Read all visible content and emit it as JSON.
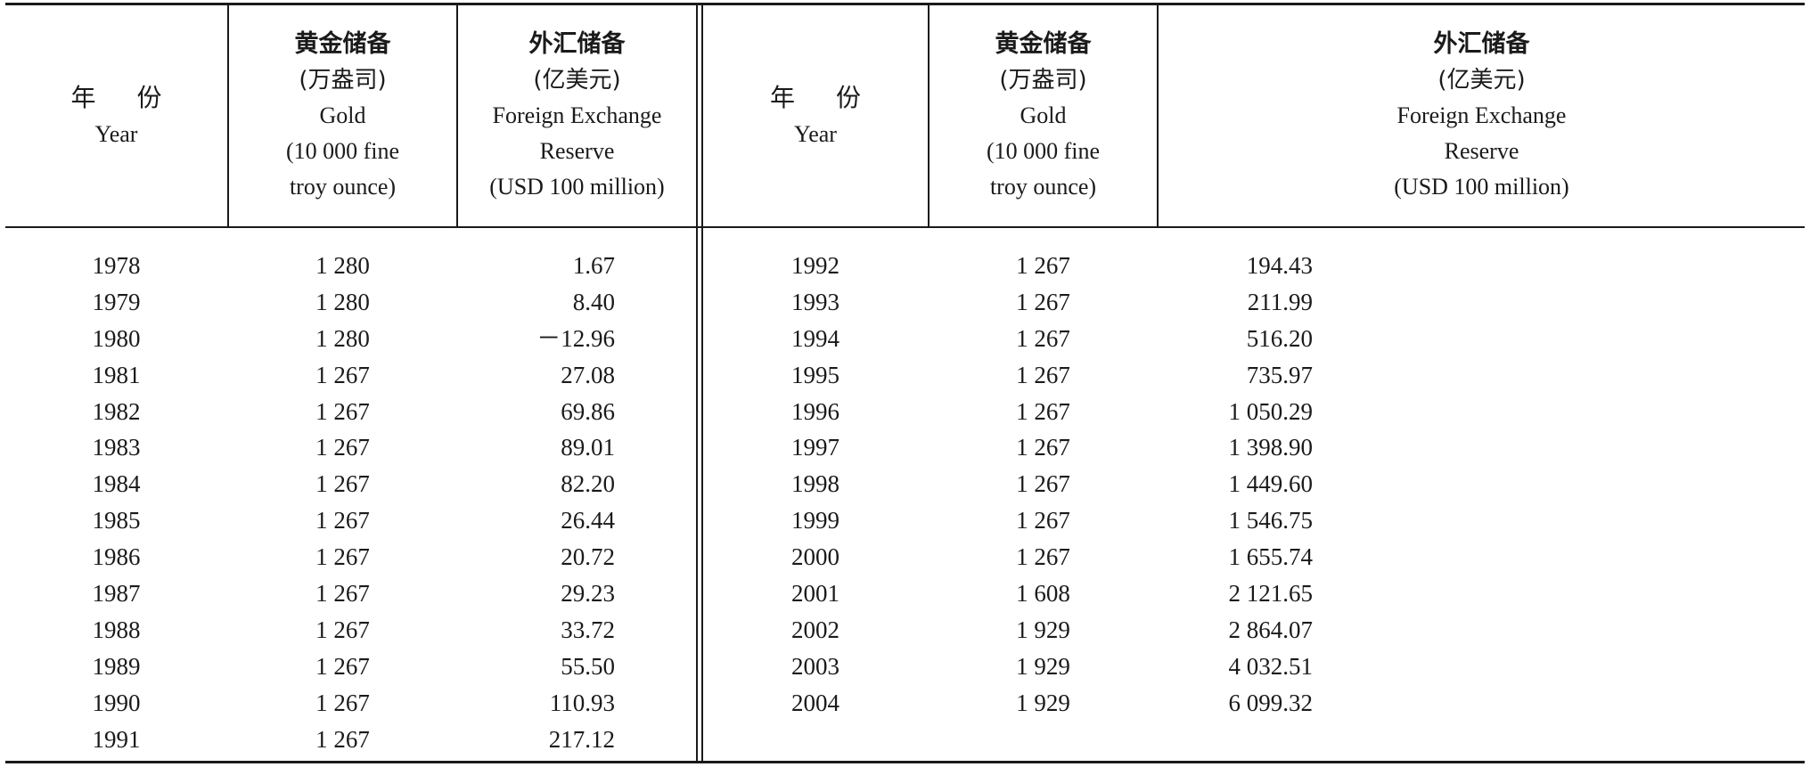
{
  "headers": {
    "year_cn_left": "年",
    "year_cn_right": "份",
    "year_en": "Year",
    "gold": [
      "黄金储备",
      "(万盎司)",
      "Gold",
      "(10 000 fine",
      "troy ounce)"
    ],
    "fx": [
      "外汇储备",
      "(亿美元)",
      "Foreign Exchange",
      "Reserve",
      "(USD 100 million)"
    ]
  },
  "left_rows": [
    {
      "year": "1978",
      "gold": "1 280",
      "fx": "1.67"
    },
    {
      "year": "1979",
      "gold": "1 280",
      "fx": "8.40"
    },
    {
      "year": "1980",
      "gold": "1 280",
      "fx": "－12.96"
    },
    {
      "year": "1981",
      "gold": "1 267",
      "fx": "27.08"
    },
    {
      "year": "1982",
      "gold": "1 267",
      "fx": "69.86"
    },
    {
      "year": "1983",
      "gold": "1 267",
      "fx": "89.01"
    },
    {
      "year": "1984",
      "gold": "1 267",
      "fx": "82.20"
    },
    {
      "year": "1985",
      "gold": "1 267",
      "fx": "26.44"
    },
    {
      "year": "1986",
      "gold": "1 267",
      "fx": "20.72"
    },
    {
      "year": "1987",
      "gold": "1 267",
      "fx": "29.23"
    },
    {
      "year": "1988",
      "gold": "1 267",
      "fx": "33.72"
    },
    {
      "year": "1989",
      "gold": "1 267",
      "fx": "55.50"
    },
    {
      "year": "1990",
      "gold": "1 267",
      "fx": "110.93"
    },
    {
      "year": "1991",
      "gold": "1 267",
      "fx": "217.12"
    }
  ],
  "right_rows": [
    {
      "year": "1992",
      "gold": "1 267",
      "fx": "194.43"
    },
    {
      "year": "1993",
      "gold": "1 267",
      "fx": "211.99"
    },
    {
      "year": "1994",
      "gold": "1 267",
      "fx": "516.20"
    },
    {
      "year": "1995",
      "gold": "1 267",
      "fx": "735.97"
    },
    {
      "year": "1996",
      "gold": "1 267",
      "fx": "1 050.29"
    },
    {
      "year": "1997",
      "gold": "1 267",
      "fx": "1 398.90"
    },
    {
      "year": "1998",
      "gold": "1 267",
      "fx": "1 449.60"
    },
    {
      "year": "1999",
      "gold": "1 267",
      "fx": "1 546.75"
    },
    {
      "year": "2000",
      "gold": "1 267",
      "fx": "1 655.74"
    },
    {
      "year": "2001",
      "gold": "1 608",
      "fx": "2 121.65"
    },
    {
      "year": "2002",
      "gold": "1 929",
      "fx": "2 864.07"
    },
    {
      "year": "2003",
      "gold": "1 929",
      "fx": "4 032.51"
    },
    {
      "year": "2004",
      "gold": "1 929",
      "fx": "6 099.32"
    }
  ]
}
